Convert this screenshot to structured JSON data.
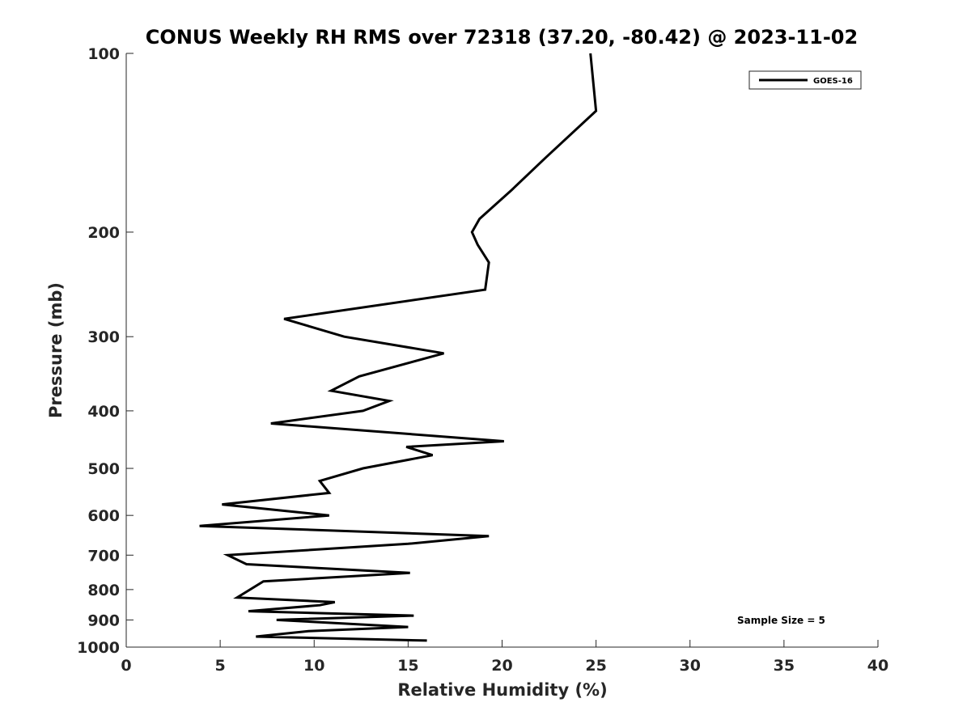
{
  "chart_data": {
    "type": "line",
    "title": "CONUS Weekly RH RMS over 72318 (37.20, -80.42) @ 2023-11-02",
    "xlabel": "Relative Humidity (%)",
    "ylabel": "Pressure (mb)",
    "xlim": [
      0,
      40
    ],
    "ylim": [
      1000,
      100
    ],
    "y_scale": "log",
    "y_reversed": true,
    "x_ticks": [
      0,
      5,
      10,
      15,
      20,
      25,
      30,
      35,
      40
    ],
    "y_ticks": [
      100,
      200,
      300,
      400,
      500,
      600,
      700,
      800,
      900,
      1000
    ],
    "grid": false,
    "legend_position": "top-right",
    "annotation": "Sample Size = 5",
    "series": [
      {
        "name": "GOES-16",
        "color": "#000000",
        "x": [
          24.7,
          25.0,
          22.3,
          20.5,
          18.8,
          18.4,
          18.7,
          19.3,
          19.1,
          8.4,
          11.6,
          16.9,
          12.4,
          10.9,
          14.0,
          12.6,
          7.7,
          20.1,
          14.9,
          16.3,
          12.6,
          10.3,
          10.8,
          5.1,
          10.8,
          3.9,
          19.3,
          15.0,
          5.4,
          6.4,
          15.1,
          7.3,
          5.9,
          11.1,
          10.3,
          6.5,
          15.3,
          8.0,
          15.0,
          9.7,
          6.9,
          16.0
        ],
        "y": [
          100,
          125,
          150,
          170,
          190,
          200,
          210,
          225,
          250,
          280,
          300,
          320,
          350,
          370,
          385,
          400,
          420,
          450,
          460,
          475,
          500,
          525,
          550,
          575,
          600,
          625,
          650,
          670,
          700,
          725,
          750,
          775,
          825,
          840,
          850,
          870,
          885,
          900,
          925,
          940,
          960,
          975
        ]
      }
    ]
  }
}
